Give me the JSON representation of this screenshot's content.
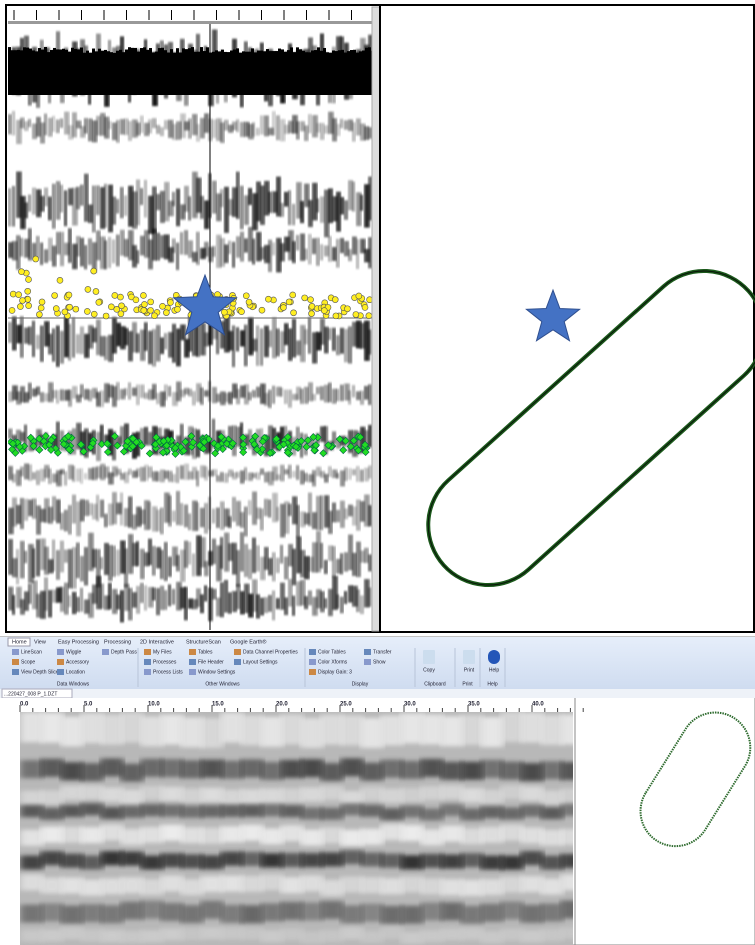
{
  "ribbon": {
    "tabs": [
      "Home",
      "View",
      "Easy Processing",
      "Processing",
      "2D Interactive",
      "StructureScan",
      "Google Earth®"
    ],
    "groups": [
      {
        "label": "Data Windows",
        "buttons": [
          "LineScan",
          "Scope",
          "View Depth Slices",
          "Wiggle",
          "Accessory",
          "Location",
          "Depth Pass"
        ]
      },
      {
        "label": "Other Windows",
        "buttons": [
          "My Files",
          "Processes",
          "Process Lists",
          "Tables",
          "File Header",
          "Window Settings",
          "Data Channel Properties",
          "Layout Settings"
        ]
      },
      {
        "label": "Display",
        "buttons": [
          "Color Tables",
          "Color Xforms",
          "Display Gain: 3",
          "Transfer",
          "Show"
        ]
      },
      {
        "label": "Clipboard",
        "buttons": [
          "Copy"
        ]
      },
      {
        "label": "Print",
        "buttons": [
          "Print"
        ]
      },
      {
        "label": "Help",
        "buttons": [
          "Help"
        ]
      }
    ]
  },
  "file_tab": "...220427_008 P_1.DZT",
  "ruler": {
    "labels": [
      "0.0",
      "5.0",
      "10.0",
      "15.0",
      "20.0",
      "25.0",
      "30.0",
      "35.0",
      "40.0"
    ]
  }
}
